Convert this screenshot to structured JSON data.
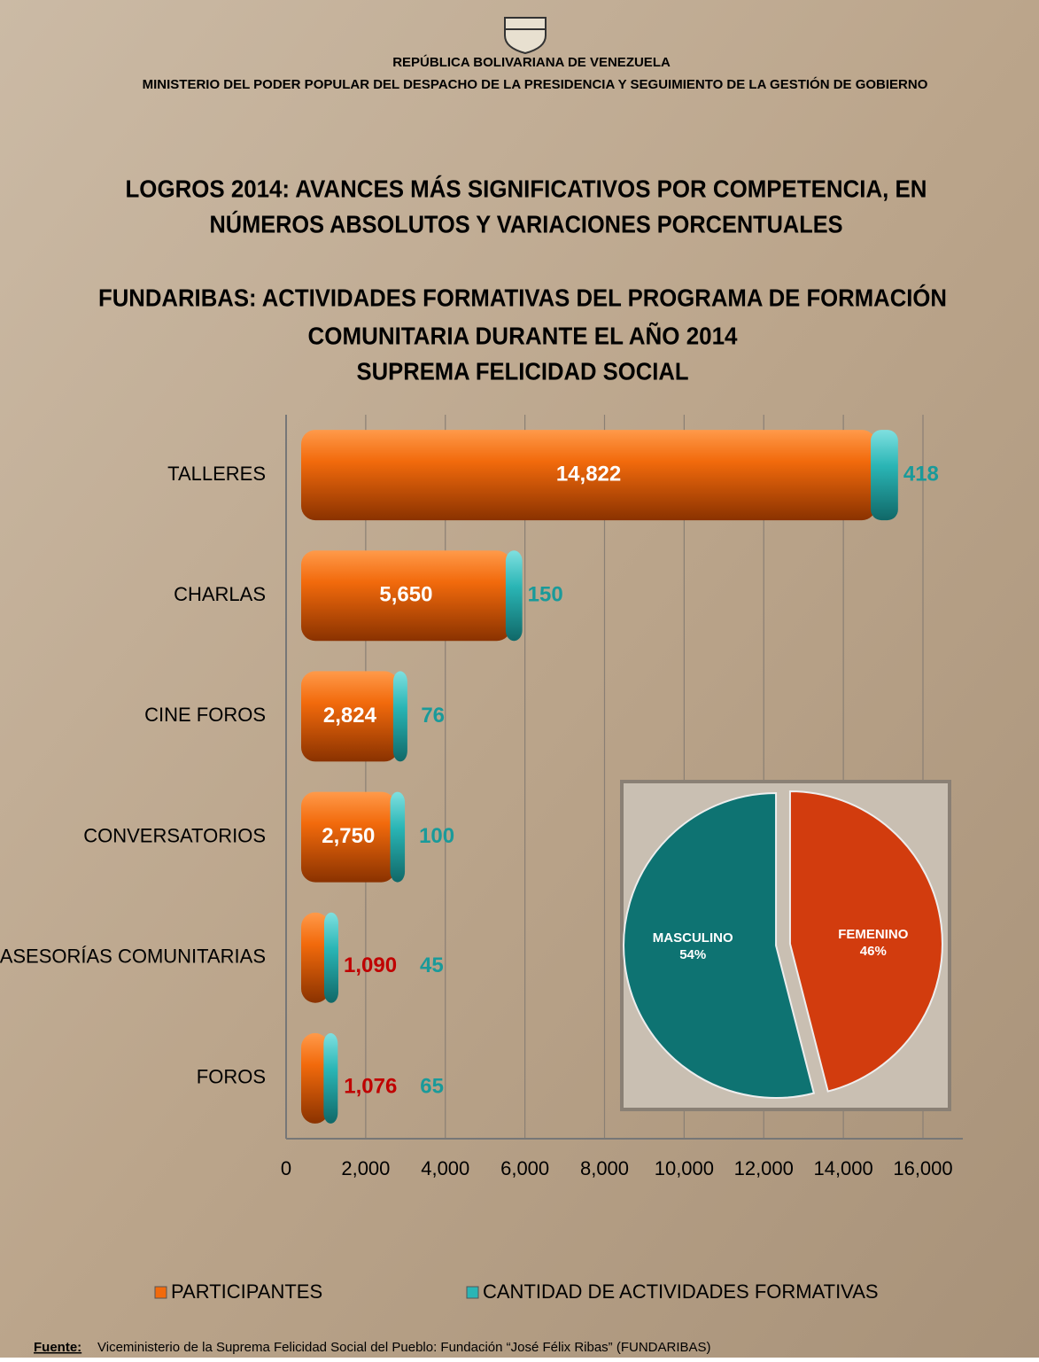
{
  "header": {
    "country": "REPÚBLICA BOLIVARIANA DE VENEZUELA",
    "ministry": "MINISTERIO DEL PODER POPULAR DEL DESPACHO DE LA PRESIDENCIA Y SEGUIMIENTO DE LA GESTIÓN DE GOBIERNO"
  },
  "heading": [
    "LOGROS 2014: AVANCES MÁS SIGNIFICATIVOS POR COMPETENCIA, EN",
    "NÚMEROS ABSOLUTOS Y VARIACIONES PORCENTUALES"
  ],
  "chart_data": [
    {
      "type": "bar",
      "orientation": "horizontal",
      "stacked": true,
      "title": [
        "FUNDARIBAS: ACTIVIDADES FORMATIVAS DEL PROGRAMA DE FORMACIÓN",
        "COMUNITARIA DURANTE EL AÑO 2014",
        "SUPREMA FELICIDAD SOCIAL"
      ],
      "categories": [
        "TALLERES",
        "CHARLAS",
        "CINE FOROS",
        "CONVERSATORIOS",
        "ASESORÍAS COMUNITARIAS",
        "FOROS"
      ],
      "series": [
        {
          "name": "PARTICIPANTES",
          "color": "#f26a0c",
          "values": [
            14822,
            5650,
            2824,
            2750,
            1090,
            1076
          ],
          "value_labels": [
            "14,822",
            "5,650",
            "2,824",
            "2,750",
            "1,090",
            "1,076"
          ]
        },
        {
          "name": "CANTIDAD DE ACTIVIDADES FORMATIVAS",
          "color": "#2ab5b5",
          "values": [
            418,
            150,
            76,
            100,
            45,
            65
          ]
        }
      ],
      "xlim": [
        0,
        16000
      ],
      "xticks": [
        0,
        {
          "value": 2000,
          "label": "2,000"
        },
        {
          "value": 4000,
          "label": "4,000"
        },
        {
          "value": 6000,
          "label": "6,000"
        },
        {
          "value": 8000,
          "label": "8,000"
        },
        {
          "value": 10000,
          "label": "10,000"
        },
        {
          "value": 12000,
          "label": "12,000"
        },
        {
          "value": 14000,
          "label": "14,000"
        },
        {
          "value": 16000,
          "label": "16,000"
        }
      ],
      "grid": true,
      "legend": "bottom"
    },
    {
      "type": "pie",
      "categories": [
        "FEMENINO",
        "MASCULINO"
      ],
      "values": [
        46,
        54
      ],
      "value_labels": [
        "46%",
        "54%"
      ],
      "colors": [
        "#d23c0e",
        "#0e7372"
      ]
    }
  ],
  "source": {
    "label": "Fuente:",
    "text": "Viceministerio de la Suprema Felicidad Social del Pueblo: Fundación “José Félix Ribas” (FUNDARIBAS)"
  }
}
